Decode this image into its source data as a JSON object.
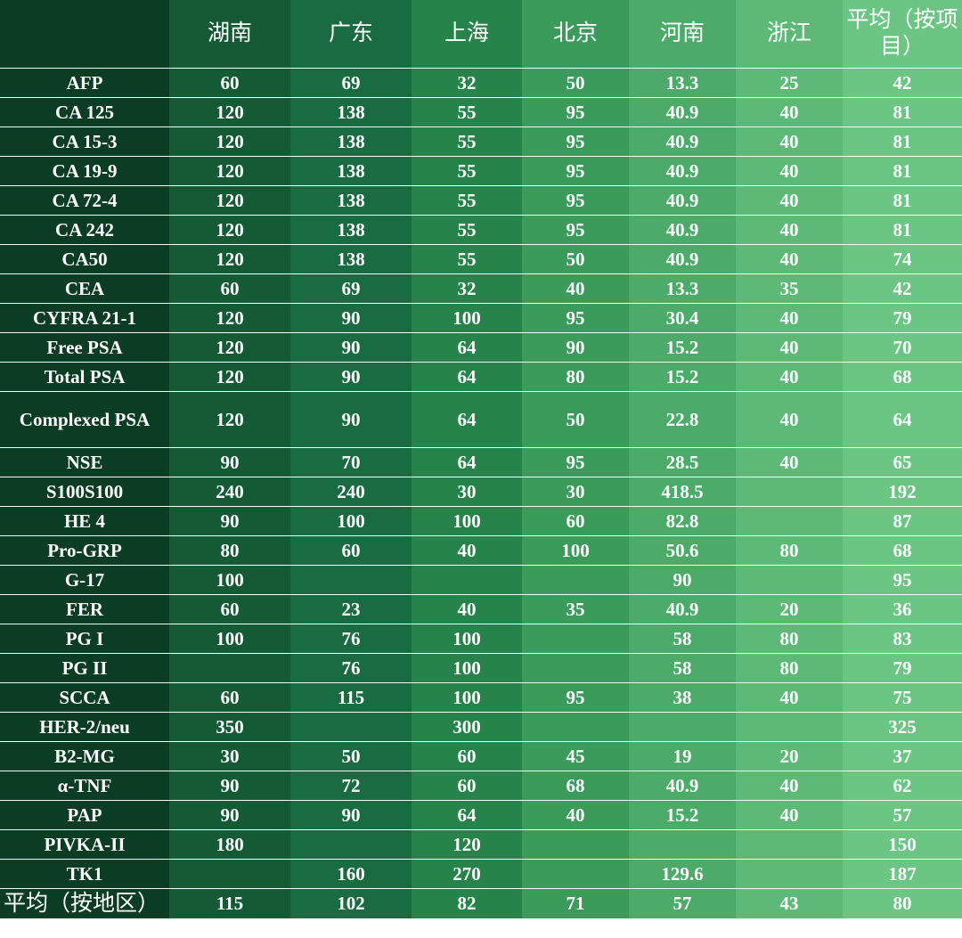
{
  "chart_data": {
    "type": "table",
    "columns": [
      "",
      "湖南",
      "广东",
      "上海",
      "北京",
      "河南",
      "浙江",
      "平均（按项目）"
    ],
    "rows": [
      {
        "name": "AFP",
        "values": [
          "60",
          "69",
          "32",
          "50",
          "13.3",
          "25",
          "42"
        ]
      },
      {
        "name": "CA 125",
        "values": [
          "120",
          "138",
          "55",
          "95",
          "40.9",
          "40",
          "81"
        ]
      },
      {
        "name": "CA 15-3",
        "values": [
          "120",
          "138",
          "55",
          "95",
          "40.9",
          "40",
          "81"
        ]
      },
      {
        "name": "CA 19-9",
        "values": [
          "120",
          "138",
          "55",
          "95",
          "40.9",
          "40",
          "81"
        ]
      },
      {
        "name": "CA 72-4",
        "values": [
          "120",
          "138",
          "55",
          "95",
          "40.9",
          "40",
          "81"
        ]
      },
      {
        "name": "CA 242",
        "values": [
          "120",
          "138",
          "55",
          "95",
          "40.9",
          "40",
          "81"
        ]
      },
      {
        "name": "CA50",
        "values": [
          "120",
          "138",
          "55",
          "50",
          "40.9",
          "40",
          "74"
        ]
      },
      {
        "name": "CEA",
        "values": [
          "60",
          "69",
          "32",
          "40",
          "13.3",
          "35",
          "42"
        ]
      },
      {
        "name": "CYFRA 21-1",
        "values": [
          "120",
          "90",
          "100",
          "95",
          "30.4",
          "40",
          "79"
        ]
      },
      {
        "name": "Free PSA",
        "values": [
          "120",
          "90",
          "64",
          "90",
          "15.2",
          "40",
          "70"
        ]
      },
      {
        "name": "Total PSA",
        "values": [
          "120",
          "90",
          "64",
          "80",
          "15.2",
          "40",
          "68"
        ]
      },
      {
        "name": "Complexed PSA",
        "tall": true,
        "values": [
          "120",
          "90",
          "64",
          "50",
          "22.8",
          "40",
          "64"
        ]
      },
      {
        "name": "NSE",
        "values": [
          "90",
          "70",
          "64",
          "95",
          "28.5",
          "40",
          "65"
        ]
      },
      {
        "name": "S100S100",
        "values": [
          "240",
          "240",
          "30",
          "30",
          "418.5",
          "",
          "192"
        ]
      },
      {
        "name": "HE 4",
        "values": [
          "90",
          "100",
          "100",
          "60",
          "82.8",
          "",
          "87"
        ]
      },
      {
        "name": "Pro-GRP",
        "values": [
          "80",
          "60",
          "40",
          "100",
          "50.6",
          "80",
          "68"
        ]
      },
      {
        "name": "G-17",
        "values": [
          "100",
          "",
          "",
          "",
          "90",
          "",
          "95"
        ]
      },
      {
        "name": "FER",
        "values": [
          "60",
          "23",
          "40",
          "35",
          "40.9",
          "20",
          "36"
        ]
      },
      {
        "name": "PG I",
        "values": [
          "100",
          "76",
          "100",
          "",
          "58",
          "80",
          "83"
        ]
      },
      {
        "name": "PG II",
        "values": [
          "",
          "76",
          "100",
          "",
          "58",
          "80",
          "79"
        ]
      },
      {
        "name": "SCCA",
        "values": [
          "60",
          "115",
          "100",
          "95",
          "38",
          "40",
          "75"
        ]
      },
      {
        "name": "HER-2/neu",
        "values": [
          "350",
          "",
          "300",
          "",
          "",
          "",
          "325"
        ]
      },
      {
        "name": "B2-MG",
        "values": [
          "30",
          "50",
          "60",
          "45",
          "19",
          "20",
          "37"
        ]
      },
      {
        "name": "α-TNF",
        "values": [
          "90",
          "72",
          "60",
          "68",
          "40.9",
          "40",
          "62"
        ]
      },
      {
        "name": "PAP",
        "values": [
          "90",
          "90",
          "64",
          "40",
          "15.2",
          "40",
          "57"
        ]
      },
      {
        "name": "PIVKA-II",
        "values": [
          "180",
          "",
          "120",
          "",
          "",
          "",
          "150"
        ]
      },
      {
        "name": "TK1",
        "values": [
          "",
          "160",
          "270",
          "",
          "129.6",
          "",
          "187"
        ]
      }
    ],
    "footer": {
      "name": "平均（按地区）",
      "values": [
        "115",
        "102",
        "82",
        "71",
        "57",
        "43",
        "80"
      ]
    }
  }
}
